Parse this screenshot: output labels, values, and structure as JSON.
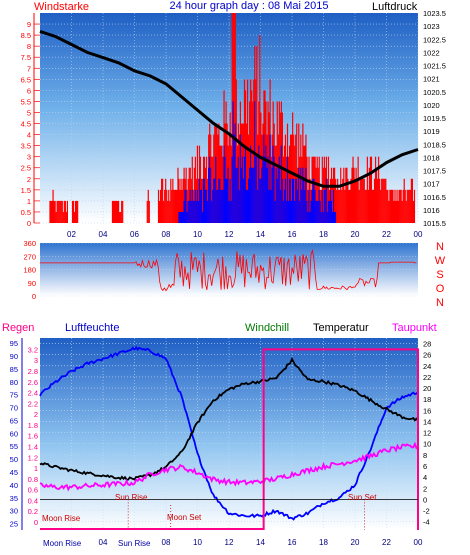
{
  "title": "24 hour graph day : 08 Mai 2015",
  "chart_data": [
    {
      "type": "line",
      "panel": "wind_and_pressure",
      "left_label": "Windstarke",
      "right_label": "Luftdruck",
      "left_ylim": [
        0,
        9.5
      ],
      "left_ticks": [
        "0",
        "0.5",
        "1",
        "1.5",
        "2",
        "2.5",
        "3",
        "3.5",
        "4",
        "4.5",
        "5",
        "5.5",
        "6",
        "6.5",
        "7",
        "7.5",
        "8",
        "8.5",
        "9"
      ],
      "right_ylim": [
        1015.5,
        1023.5
      ],
      "right_ticks": [
        "1015.5",
        "1016",
        "1016.5",
        "1017",
        "1017.5",
        "1018",
        "1018.5",
        "1019",
        "1019.5",
        "1020",
        "1020.5",
        "1021",
        "1021.5",
        "1022",
        "1022.5",
        "1023",
        "1023.5"
      ],
      "x_ticks": [
        "02",
        "04",
        "06",
        "08",
        "10",
        "12",
        "14",
        "16",
        "18",
        "20",
        "22",
        "00"
      ],
      "pressure": {
        "hours": [
          0,
          1,
          2,
          3,
          4,
          5,
          6,
          7,
          8,
          9,
          10,
          11,
          12,
          13,
          14,
          15,
          16,
          17,
          18,
          19,
          20,
          21,
          22,
          23,
          24
        ],
        "values": [
          1022.8,
          1022.6,
          1022.3,
          1022.0,
          1021.8,
          1021.6,
          1021.3,
          1021.1,
          1020.8,
          1020.3,
          1019.8,
          1019.3,
          1018.9,
          1018.4,
          1018.0,
          1017.7,
          1017.4,
          1017.1,
          1016.9,
          1016.9,
          1017.1,
          1017.4,
          1017.8,
          1018.1,
          1018.3
        ]
      },
      "wind_speed_colors": {
        "gust": "#ff0000",
        "average": "#0000ff"
      },
      "pressure_color": "#000000"
    },
    {
      "type": "line",
      "panel": "wind_direction",
      "ylim": [
        0,
        360
      ],
      "left_ticks": [
        "0",
        "90",
        "180",
        "270",
        "360"
      ],
      "right_ticks": [
        "N",
        "W",
        "S",
        "O",
        "N"
      ],
      "baseline": 225,
      "color": "#ff0000"
    },
    {
      "type": "line",
      "panel": "temperature_humidity",
      "labels": {
        "rain": "Regen",
        "humidity": "Luftfeuchte",
        "windchill": "Windchill",
        "temperature": "Temperatur",
        "dewpoint": "Taupunkt"
      },
      "humidity_ticks": [
        "25",
        "30",
        "35",
        "40",
        "45",
        "50",
        "55",
        "60",
        "65",
        "70",
        "75",
        "80",
        "85",
        "90",
        "95"
      ],
      "humidity_ylim": [
        22.5,
        97
      ],
      "rain_ticks": [
        "0",
        "0.2",
        "0.4",
        "0.6",
        "0.8",
        "1",
        "1.2",
        "1.4",
        "1.6",
        "1.8",
        "2",
        "2.2",
        "2.4",
        "2.6",
        "2.8",
        "3",
        "3.2"
      ],
      "temp_ticks": [
        "-4",
        "-2",
        "0",
        "2",
        "4",
        "6",
        "8",
        "10",
        "12",
        "14",
        "16",
        "18",
        "20",
        "22",
        "24",
        "26",
        "28"
      ],
      "temp_ylim": [
        -5.5,
        29
      ],
      "x_ticks": [
        "02",
        "04",
        "06",
        "08",
        "10",
        "12",
        "14",
        "16",
        "18",
        "20",
        "22",
        "00"
      ],
      "annotations": {
        "moon_rise": "Moon Rise",
        "sun_rise": "Sun Rise",
        "moon_set": "Moon Set",
        "sun_set": "Sun Set",
        "bottom_moon_rise": "Moon Rise",
        "bottom_sun_rise": "Sun Rise"
      },
      "temperature": {
        "hours": [
          0,
          1,
          2,
          3,
          4,
          5,
          6,
          7,
          8,
          9,
          10,
          11,
          12,
          13,
          14,
          15,
          16,
          17,
          18,
          19,
          20,
          21,
          22,
          23,
          24
        ],
        "values": [
          6.5,
          5.8,
          5.2,
          4.7,
          4.3,
          3.9,
          3.7,
          4.4,
          5.8,
          8.5,
          13.8,
          17.8,
          19.8,
          20.8,
          21.2,
          21.8,
          25.0,
          21.5,
          21.2,
          20.5,
          19.5,
          17.8,
          16.2,
          14.8,
          14.2
        ]
      },
      "dewpoint": {
        "hours": [
          0,
          1,
          2,
          3,
          4,
          5,
          6,
          7,
          8,
          9,
          10,
          11,
          12,
          13,
          14,
          15,
          16,
          17,
          18,
          19,
          20,
          21,
          22,
          23,
          24
        ],
        "values": [
          2.5,
          2.2,
          2.2,
          2.4,
          2.6,
          2.8,
          3.0,
          4.5,
          5.4,
          5.8,
          4.8,
          3.6,
          3.1,
          3.0,
          3.2,
          3.7,
          4.5,
          5.2,
          5.9,
          6.4,
          7.0,
          7.8,
          8.8,
          9.4,
          9.6
        ]
      },
      "humidity": {
        "hours": [
          0,
          1,
          2,
          3,
          4,
          5,
          6,
          7,
          8,
          9,
          10,
          11,
          12,
          13,
          14,
          15,
          16,
          17,
          18,
          19,
          20,
          21,
          22,
          23,
          24
        ],
        "values": [
          75,
          80,
          84,
          87,
          89,
          91,
          93,
          92,
          89,
          74,
          52,
          36,
          29,
          28,
          28,
          30,
          27,
          29,
          33,
          35,
          40,
          54,
          70,
          74,
          76
        ]
      },
      "rain": {
        "hours": [
          14.2,
          24
        ],
        "values": [
          3.2,
          3.2
        ]
      },
      "colors": {
        "temperature": "#000000",
        "humidity": "#0000ff",
        "dewpoint": "#ff00ff",
        "rain": "#ff0088"
      }
    }
  ]
}
